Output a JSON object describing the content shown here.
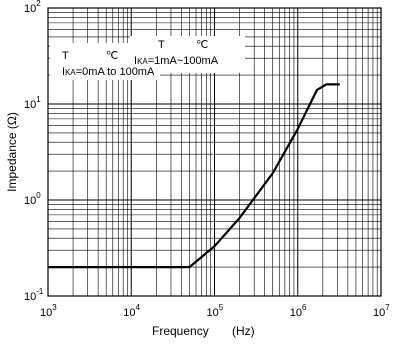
{
  "chart_data": {
    "type": "line",
    "xlabel": "Frequency",
    "xunit": "(Hz)",
    "ylabel": "Impedance (Ω)",
    "x_scale": "log",
    "y_scale": "log",
    "xlim": [
      1000,
      10000000
    ],
    "ylim": [
      0.1,
      100
    ],
    "grid": true,
    "x_ticks": [
      {
        "base": "10",
        "exp": "3"
      },
      {
        "base": "10",
        "exp": "4"
      },
      {
        "base": "10",
        "exp": "5"
      },
      {
        "base": "10",
        "exp": "6"
      },
      {
        "base": "10",
        "exp": "7"
      }
    ],
    "y_ticks": [
      {
        "base": "10",
        "exp": "-1"
      },
      {
        "base": "10",
        "exp": "0"
      },
      {
        "base": "10",
        "exp": "1"
      },
      {
        "base": "10",
        "exp": "2"
      }
    ],
    "annotations": {
      "left_t": "T",
      "left_c": "℃",
      "left_ika_prefix": "I",
      "left_ika_sub": "KA",
      "left_ika_suffix": "=0mA to 100mA",
      "right_t": "T",
      "right_c": "℃",
      "right_ika_prefix": "I",
      "right_ika_sub": "KA",
      "right_ika_suffix": "=1mA~100mA"
    },
    "series": [
      {
        "line_color": "#000000",
        "points": [
          {
            "x": 1000,
            "y": 0.2
          },
          {
            "x": 10000,
            "y": 0.2
          },
          {
            "x": 50000,
            "y": 0.2
          },
          {
            "x": 100000,
            "y": 0.33
          },
          {
            "x": 200000,
            "y": 0.65
          },
          {
            "x": 500000,
            "y": 1.9
          },
          {
            "x": 1000000,
            "y": 5.5
          },
          {
            "x": 1700000,
            "y": 14
          },
          {
            "x": 2200000,
            "y": 16
          },
          {
            "x": 3200000,
            "y": 16
          }
        ]
      }
    ]
  }
}
